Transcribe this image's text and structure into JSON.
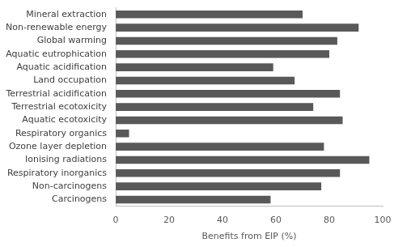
{
  "chart_data": {
    "type": "bar",
    "orientation": "horizontal",
    "xlabel": "Benefits from EIP (%)",
    "categories": [
      "Mineral extraction",
      "Non-renewable energy",
      "Global warming",
      "Aquatic eutrophication",
      "Aquatic acidification",
      "Land occupation",
      "Terrestrial acidification",
      "Terrestrial ecotoxicity",
      "Aquatic ecotoxicity",
      "Respiratory organics",
      "Ozone layer depletion",
      "Ionising radiations",
      "Respiratory inorganics",
      "Non-carcinogens",
      "Carcinogens"
    ],
    "values": [
      70,
      91,
      83,
      80,
      59,
      67,
      84,
      74,
      85,
      5,
      78,
      95,
      84,
      77,
      58
    ],
    "color": "#595959",
    "xlim": [
      0,
      100
    ],
    "xticks": [
      0,
      20,
      40,
      60,
      80,
      100
    ],
    "grid": false
  }
}
